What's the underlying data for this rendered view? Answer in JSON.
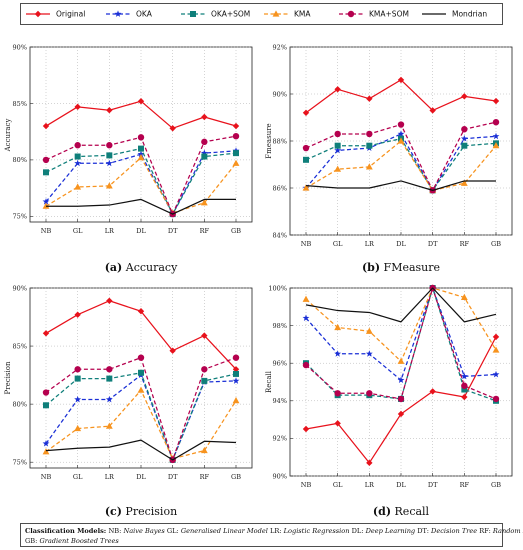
{
  "legend": {
    "items": [
      {
        "name": "Original",
        "color": "#e8121c",
        "dash": "",
        "marker": "diamond"
      },
      {
        "name": "OKA",
        "color": "#1a2fd6",
        "dash": "4,2.5",
        "marker": "star"
      },
      {
        "name": "OKA+SOM",
        "color": "#0f7f7a",
        "dash": "4,2.5",
        "marker": "square"
      },
      {
        "name": "KMA",
        "color": "#f7931e",
        "dash": "4,2.5",
        "marker": "triangle"
      },
      {
        "name": "KMA+SOM",
        "color": "#b5004e",
        "dash": "4,2.5",
        "marker": "circle"
      },
      {
        "name": "Mondrian",
        "color": "#111111",
        "dash": "",
        "marker": "none"
      }
    ]
  },
  "chart_data": [
    {
      "type": "line",
      "panel_label": "(a)",
      "caption": "Accuracy",
      "ylabel": "Accuracy",
      "categories": [
        "NB",
        "GL",
        "LR",
        "DL",
        "DT",
        "RF",
        "GB"
      ],
      "ylim": [
        74.5,
        90
      ],
      "yticks": [
        75,
        80,
        85,
        90
      ],
      "ytick_labels": [
        "75%",
        "80%",
        "85%",
        "90%"
      ],
      "series": [
        {
          "name": "Original",
          "values": [
            83.0,
            84.7,
            84.4,
            85.2,
            82.8,
            83.8,
            83.0
          ]
        },
        {
          "name": "OKA",
          "values": [
            76.3,
            79.7,
            79.7,
            80.5,
            75.2,
            80.6,
            80.8
          ]
        },
        {
          "name": "OKA+SOM",
          "values": [
            78.9,
            80.3,
            80.4,
            81.0,
            75.2,
            80.3,
            80.6
          ]
        },
        {
          "name": "KMA",
          "values": [
            75.9,
            77.6,
            77.7,
            80.2,
            75.3,
            76.2,
            79.7
          ]
        },
        {
          "name": "KMA+SOM",
          "values": [
            80.0,
            81.3,
            81.3,
            82.0,
            75.2,
            81.6,
            82.1
          ]
        },
        {
          "name": "Mondrian",
          "values": [
            75.9,
            75.9,
            76.0,
            76.5,
            75.2,
            76.5,
            76.5
          ]
        }
      ]
    },
    {
      "type": "line",
      "panel_label": "(b)",
      "caption": "FMeasure",
      "ylabel": "Fmeasure",
      "categories": [
        "NB",
        "GL",
        "LR",
        "DL",
        "DT",
        "RF",
        "GB"
      ],
      "ylim": [
        84,
        92
      ],
      "yticks": [
        84,
        86,
        88,
        90,
        92
      ],
      "ytick_labels": [
        "84%",
        "86%",
        "88%",
        "90%",
        "92%"
      ],
      "series": [
        {
          "name": "Original",
          "values": [
            89.2,
            90.2,
            89.8,
            90.6,
            89.3,
            89.9,
            89.7
          ]
        },
        {
          "name": "OKA",
          "values": [
            86.0,
            87.6,
            87.7,
            88.3,
            85.9,
            88.1,
            88.2
          ]
        },
        {
          "name": "OKA+SOM",
          "values": [
            87.2,
            87.8,
            87.8,
            88.1,
            85.9,
            87.8,
            87.9
          ]
        },
        {
          "name": "KMA",
          "values": [
            86.0,
            86.8,
            86.9,
            88.0,
            85.9,
            86.2,
            87.8
          ]
        },
        {
          "name": "KMA+SOM",
          "values": [
            87.7,
            88.3,
            88.3,
            88.7,
            85.9,
            88.5,
            88.8
          ]
        },
        {
          "name": "Mondrian",
          "values": [
            86.1,
            86.0,
            86.0,
            86.3,
            85.9,
            86.3,
            86.3
          ]
        }
      ]
    },
    {
      "type": "line",
      "panel_label": "(c)",
      "caption": "Precision",
      "ylabel": "Precision",
      "categories": [
        "NB",
        "GL",
        "LR",
        "DL",
        "DT",
        "RF",
        "GB"
      ],
      "ylim": [
        74.5,
        90
      ],
      "yticks": [
        75,
        80,
        85,
        90
      ],
      "ytick_labels": [
        "75%",
        "80%",
        "85%",
        "90%"
      ],
      "series": [
        {
          "name": "Original",
          "values": [
            86.1,
            87.7,
            88.9,
            88.0,
            84.6,
            85.9,
            83.0
          ]
        },
        {
          "name": "OKA",
          "values": [
            76.6,
            80.4,
            80.4,
            82.5,
            75.2,
            81.9,
            82.0
          ]
        },
        {
          "name": "OKA+SOM",
          "values": [
            79.9,
            82.2,
            82.2,
            82.7,
            75.2,
            82.0,
            82.6
          ]
        },
        {
          "name": "KMA",
          "values": [
            75.9,
            77.9,
            78.1,
            81.2,
            75.3,
            76.0,
            80.3
          ]
        },
        {
          "name": "KMA+SOM",
          "values": [
            81.0,
            83.0,
            83.0,
            84.0,
            75.2,
            83.0,
            84.0
          ]
        },
        {
          "name": "Mondrian",
          "values": [
            76.0,
            76.2,
            76.3,
            76.9,
            75.2,
            76.8,
            76.7
          ]
        }
      ]
    },
    {
      "type": "line",
      "panel_label": "(d)",
      "caption": "Recall",
      "ylabel": "Recall",
      "categories": [
        "NB",
        "GL",
        "LR",
        "DL",
        "DT",
        "RF",
        "GB"
      ],
      "ylim": [
        90,
        100
      ],
      "yticks": [
        90,
        92,
        94,
        96,
        98,
        100
      ],
      "ytick_labels": [
        "90%",
        "92%",
        "94%",
        "96%",
        "98%",
        "100%"
      ],
      "series": [
        {
          "name": "Original",
          "values": [
            92.5,
            92.8,
            90.7,
            93.3,
            94.5,
            94.2,
            97.4
          ]
        },
        {
          "name": "OKA",
          "values": [
            98.4,
            96.5,
            96.5,
            95.1,
            100.0,
            95.3,
            95.4
          ]
        },
        {
          "name": "OKA+SOM",
          "values": [
            96.0,
            94.3,
            94.3,
            94.1,
            100.0,
            94.6,
            94.0
          ]
        },
        {
          "name": "KMA",
          "values": [
            99.4,
            97.9,
            97.7,
            96.1,
            100.0,
            99.5,
            96.7
          ]
        },
        {
          "name": "KMA+SOM",
          "values": [
            95.9,
            94.4,
            94.4,
            94.1,
            100.0,
            94.8,
            94.1
          ]
        },
        {
          "name": "Mondrian",
          "values": [
            99.1,
            98.8,
            98.7,
            98.2,
            100.0,
            98.2,
            98.6
          ]
        }
      ]
    }
  ],
  "footer": {
    "heading": "Classification Models:",
    "models": [
      {
        "abbr": "NB:",
        "name": "Naive Bayes"
      },
      {
        "abbr": "GL:",
        "name": "Generalised Linear Model"
      },
      {
        "abbr": "LR:",
        "name": "Logistic Regression"
      },
      {
        "abbr": "DL:",
        "name": "Deep Learning"
      },
      {
        "abbr": "DT:",
        "name": "Decision Tree"
      },
      {
        "abbr": "RF:",
        "name": "Random Forest"
      },
      {
        "abbr": "GB:",
        "name": "Gradient Boosted Trees"
      }
    ]
  }
}
